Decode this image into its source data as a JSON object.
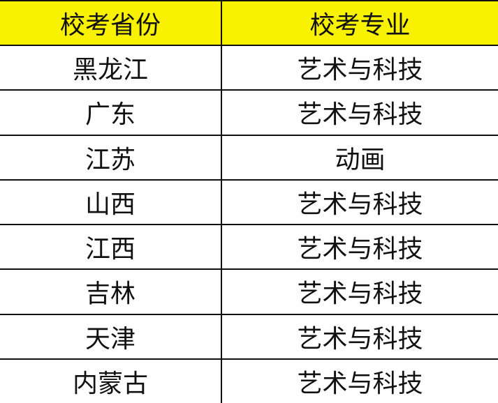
{
  "header": {
    "province": "校考省份",
    "major": "校考专业"
  },
  "header_color": "#f8f200",
  "rows": [
    {
      "province": "黑龙江",
      "major": "艺术与科技"
    },
    {
      "province": "广东",
      "major": "艺术与科技"
    },
    {
      "province": "江苏",
      "major": "动画"
    },
    {
      "province": "山西",
      "major": "艺术与科技"
    },
    {
      "province": "江西",
      "major": "艺术与科技"
    },
    {
      "province": "吉林",
      "major": "艺术与科技"
    },
    {
      "province": "天津",
      "major": "艺术与科技"
    },
    {
      "province": "内蒙古",
      "major": "艺术与科技"
    }
  ]
}
